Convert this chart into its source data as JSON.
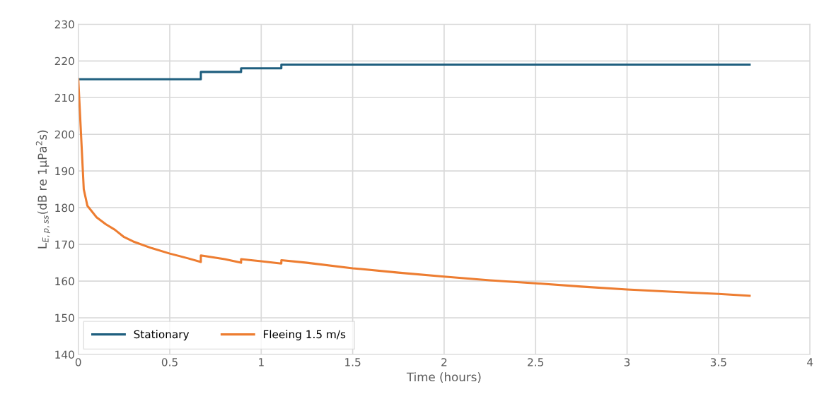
{
  "chart_data": {
    "type": "line",
    "xlabel": "Time (hours)",
    "ylabel": "L$_{E,p,ss}$(dB re 1μPa$^{2}$s)",
    "xlim": [
      0,
      4
    ],
    "xticks": [
      0,
      0.5,
      1,
      1.5,
      2,
      2.5,
      3,
      3.5,
      4
    ],
    "ylim": [
      140,
      230
    ],
    "yticks": [
      140,
      150,
      160,
      170,
      180,
      190,
      200,
      210,
      220,
      230
    ],
    "grid": true,
    "legend": "bottom left",
    "marker": "none",
    "line_style": "solid",
    "series": [
      {
        "name": "Stationary",
        "color": "#1f5f7f",
        "x": [
          0,
          0.67,
          0.67,
          0.89,
          0.89,
          1.11,
          1.11,
          3.67
        ],
        "values": [
          215,
          215,
          217,
          217,
          218,
          218,
          219,
          219
        ]
      },
      {
        "name": "Fleeing 1.5 m/s",
        "color": "#ed7d31",
        "x": [
          0,
          0.03,
          0.05,
          0.1,
          0.15,
          0.2,
          0.25,
          0.3,
          0.4,
          0.5,
          0.6,
          0.67,
          0.67,
          0.8,
          0.89,
          0.89,
          1.0,
          1.11,
          1.11,
          1.25,
          1.5,
          1.75,
          2,
          2.25,
          2.5,
          2.75,
          3,
          3.25,
          3.5,
          3.67
        ],
        "values": [
          215,
          185,
          180.5,
          177.4,
          175.5,
          174,
          172,
          170.8,
          169,
          167.5,
          166.2,
          165.2,
          167,
          166,
          165,
          166,
          165.4,
          164.8,
          165.7,
          165,
          163.5,
          162.3,
          161.2,
          160.2,
          159.4,
          158.5,
          157.7,
          157.1,
          156.5,
          156
        ]
      }
    ]
  }
}
